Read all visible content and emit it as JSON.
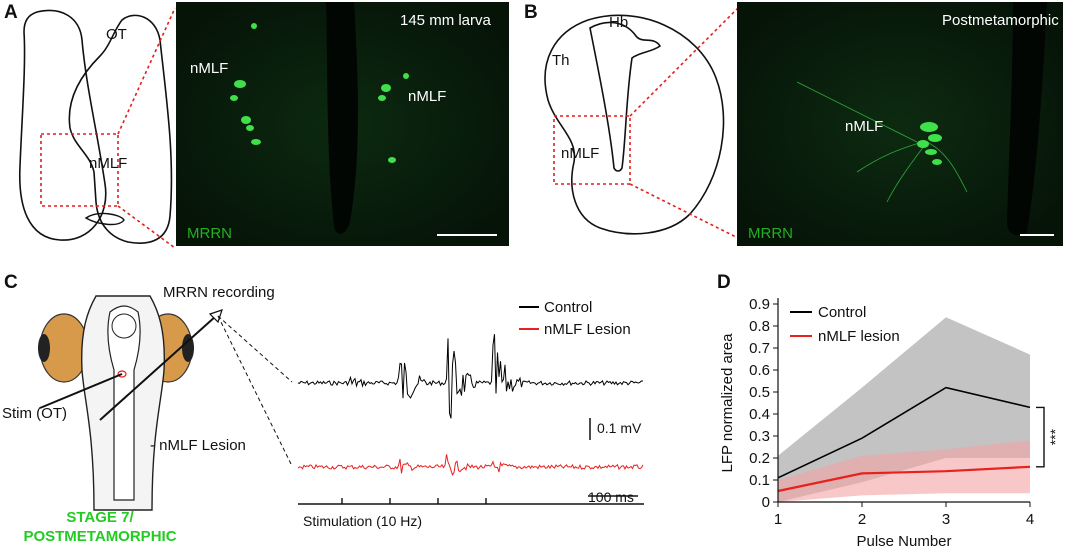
{
  "panels": {
    "a": {
      "letter": "A",
      "schematic_labels": {
        "ot": "OT",
        "nmlf": "nMLF"
      },
      "micro_title": "145 mm larva",
      "micro_labels": {
        "nmlf_left": "nMLF",
        "nmlf_right": "nMLF"
      },
      "stain": "MRRN"
    },
    "b": {
      "letter": "B",
      "schematic_labels": {
        "hb": "Hb",
        "th": "Th",
        "nmlf": "nMLF"
      },
      "micro_title": "Postmetamorphic",
      "micro_labels": {
        "nmlf": "nMLF"
      },
      "stain": "MRRN"
    },
    "c": {
      "letter": "C",
      "recording_label": "MRRN recording",
      "stim_label": "Stim (OT)",
      "lesion_label": "- nMLF Lesion",
      "stage_line1": "STAGE 7/",
      "stage_line2": "POSTMETAMORPHIC",
      "legend": [
        {
          "name": "Control",
          "color": "#000000"
        },
        {
          "name": "nMLF Lesion",
          "color": "#e8201e"
        }
      ],
      "scale_voltage": "0.1 mV",
      "scale_time": "100 ms",
      "stim_label_axis": "Stimulation (10 Hz)"
    },
    "d": {
      "letter": "D"
    }
  },
  "chart_data": {
    "type": "line",
    "xlabel": "Pulse Number",
    "ylabel": "LFP normalized area",
    "x": [
      1,
      2,
      3,
      4
    ],
    "xlim": [
      1,
      4
    ],
    "ylim": [
      0,
      0.9
    ],
    "xticks": [
      "1",
      "2",
      "3",
      "4"
    ],
    "yticks": [
      "0",
      "0.1",
      "0.2",
      "0.3",
      "0.4",
      "0.5",
      "0.6",
      "0.7",
      "0.8",
      "0.9"
    ],
    "legend_position": "top-left",
    "significance": "***",
    "series": [
      {
        "name": "Control",
        "color": "#000000",
        "band_color": "#bdbdbd",
        "values": [
          0.11,
          0.29,
          0.52,
          0.43
        ],
        "upper": [
          0.21,
          0.52,
          0.84,
          0.67
        ],
        "lower": [
          0.0,
          0.09,
          0.2,
          0.2
        ]
      },
      {
        "name": "nMLF lesion",
        "color": "#e8201e",
        "band_color": "#f4a3a3",
        "values": [
          0.05,
          0.13,
          0.14,
          0.16
        ],
        "upper": [
          0.1,
          0.21,
          0.24,
          0.28
        ],
        "lower": [
          0.0,
          0.03,
          0.04,
          0.04
        ]
      }
    ]
  }
}
